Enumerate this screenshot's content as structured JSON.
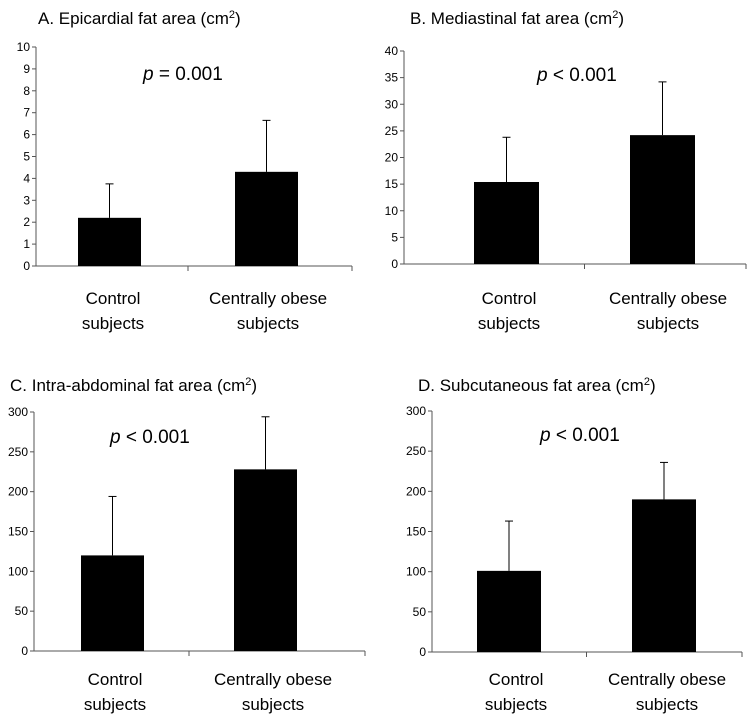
{
  "chart_data": [
    {
      "type": "bar",
      "title": "A. Epicardial fat area (cm",
      "title_sup": "2",
      "title_close": ")",
      "pvalue": "= 0.001",
      "categories": [
        [
          "Control",
          "subjects"
        ],
        [
          "Centrally obese",
          "subjects"
        ]
      ],
      "values": [
        2.2,
        4.3
      ],
      "errors": [
        3.75,
        6.65
      ],
      "ylim": [
        0,
        10
      ],
      "yticks": [
        "0",
        "1",
        "2",
        "3",
        "4",
        "5",
        "6",
        "7",
        "8",
        "9",
        "10"
      ],
      "ytick_values": [
        0,
        1,
        2,
        3,
        4,
        5,
        6,
        7,
        8,
        9,
        10
      ],
      "bar_color": "#000000"
    },
    {
      "type": "bar",
      "title": "B. Mediastinal fat area (cm",
      "title_sup": "2",
      "title_close": ")",
      "pvalue": "< 0.001",
      "categories": [
        [
          "Control",
          "subjects"
        ],
        [
          "Centrally obese",
          "subjects"
        ]
      ],
      "values": [
        15.4,
        24.2
      ],
      "errors": [
        23.8,
        34.2
      ],
      "ylim": [
        0,
        40
      ],
      "yticks": [
        "0",
        "5",
        "10",
        "15",
        "20",
        "25",
        "30",
        "35",
        "40"
      ],
      "ytick_values": [
        0,
        5,
        10,
        15,
        20,
        25,
        30,
        35,
        40
      ],
      "bar_color": "#000000"
    },
    {
      "type": "bar",
      "title": "C. Intra-abdominal fat area (cm",
      "title_sup": "2",
      "title_close": ")",
      "pvalue": "< 0.001",
      "categories": [
        [
          "Control",
          "subjects"
        ],
        [
          "Centrally obese",
          "subjects"
        ]
      ],
      "values": [
        120,
        228
      ],
      "errors": [
        194,
        294
      ],
      "ylim": [
        0,
        300
      ],
      "yticks": [
        "0",
        "50",
        "100",
        "150",
        "200",
        "250",
        "300"
      ],
      "ytick_values": [
        0,
        50,
        100,
        150,
        200,
        250,
        300
      ],
      "bar_color": "#000000"
    },
    {
      "type": "bar",
      "title": "D. Subcutaneous fat area (cm",
      "title_sup": "2",
      "title_close": ")",
      "pvalue": "< 0.001",
      "categories": [
        [
          "Control",
          "subjects"
        ],
        [
          "Centrally obese",
          "subjects"
        ]
      ],
      "values": [
        101,
        190
      ],
      "errors": [
        163,
        236
      ],
      "ylim": [
        0,
        300
      ],
      "yticks": [
        "0",
        "50",
        "100",
        "150",
        "200",
        "250",
        "300"
      ],
      "ytick_values": [
        0,
        50,
        100,
        150,
        200,
        250,
        300
      ],
      "bar_color": "#000000"
    }
  ],
  "p_letter": "p"
}
